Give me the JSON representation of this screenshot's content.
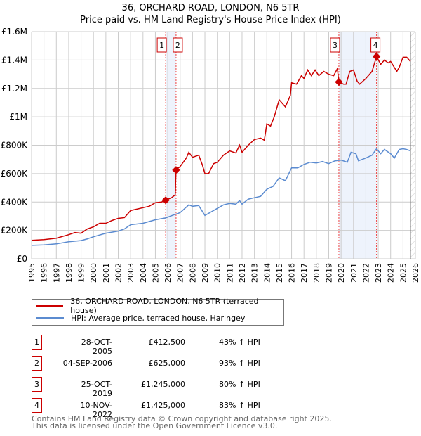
{
  "chart_data": {
    "type": "line",
    "title": "36, ORCHARD ROAD, LONDON, N6 5TR",
    "subtitle": "Price paid vs. HM Land Registry's House Price Index (HPI)",
    "xlim": [
      1995,
      2026
    ],
    "ylim": [
      0,
      1600000
    ],
    "x_ticks": [
      "1995",
      "1996",
      "1997",
      "1998",
      "1999",
      "2000",
      "2001",
      "2002",
      "2003",
      "2004",
      "2005",
      "2006",
      "2007",
      "2008",
      "2009",
      "2010",
      "2011",
      "2012",
      "2013",
      "2014",
      "2015",
      "2016",
      "2017",
      "2018",
      "2019",
      "2020",
      "2021",
      "2022",
      "2023",
      "2024",
      "2025",
      "2026"
    ],
    "y_ticks": [
      {
        "v": 0,
        "label": "£0"
      },
      {
        "v": 200000,
        "label": "£200K"
      },
      {
        "v": 400000,
        "label": "£400K"
      },
      {
        "v": 600000,
        "label": "£600K"
      },
      {
        "v": 800000,
        "label": "£800K"
      },
      {
        "v": 1000000,
        "label": "£1M"
      },
      {
        "v": 1200000,
        "label": "£1.2M"
      },
      {
        "v": 1400000,
        "label": "£1.4M"
      },
      {
        "v": 1600000,
        "label": "£1.6M"
      }
    ],
    "grid": true,
    "series": [
      {
        "name": "36, ORCHARD ROAD, LONDON, N6 5TR (terraced house)",
        "color": "#cc0000",
        "x": [
          1995,
          1996,
          1997,
          1998,
          1998.5,
          1999,
          1999.5,
          2000,
          2000.5,
          2001,
          2001.5,
          2002,
          2002.5,
          2003,
          2003.5,
          2004,
          2004.5,
          2005,
          2005.5,
          2005.83,
          2006.3,
          2006.6,
          2006.67,
          2007,
          2007.5,
          2007.7,
          2008,
          2008.5,
          2008.8,
          2009,
          2009.3,
          2009.7,
          2010,
          2010.5,
          2011,
          2011.5,
          2011.8,
          2012,
          2012.5,
          2013,
          2013.5,
          2013.8,
          2014,
          2014.3,
          2014.6,
          2015,
          2015.5,
          2015.9,
          2016,
          2016.4,
          2016.8,
          2017,
          2017.3,
          2017.6,
          2017.9,
          2018.2,
          2018.6,
          2019,
          2019.4,
          2019.7,
          2019.82,
          2020.2,
          2020.4,
          2020.7,
          2021,
          2021.3,
          2021.5,
          2022,
          2022.5,
          2022.86,
          2023.2,
          2023.5,
          2023.8,
          2024,
          2024.5,
          2024.7,
          2025,
          2025.3,
          2025.6
        ],
        "y": [
          130000,
          135000,
          145000,
          170000,
          185000,
          180000,
          210000,
          225000,
          250000,
          250000,
          270000,
          285000,
          290000,
          340000,
          350000,
          360000,
          370000,
          395000,
          400000,
          412500,
          430000,
          450000,
          625000,
          650000,
          710000,
          750000,
          715000,
          730000,
          660000,
          600000,
          600000,
          670000,
          680000,
          730000,
          760000,
          745000,
          800000,
          750000,
          800000,
          840000,
          850000,
          835000,
          950000,
          935000,
          1000000,
          1120000,
          1070000,
          1150000,
          1240000,
          1230000,
          1290000,
          1270000,
          1330000,
          1290000,
          1330000,
          1290000,
          1320000,
          1300000,
          1290000,
          1340000,
          1245000,
          1230000,
          1230000,
          1320000,
          1330000,
          1250000,
          1230000,
          1270000,
          1320000,
          1425000,
          1370000,
          1400000,
          1380000,
          1390000,
          1320000,
          1350000,
          1420000,
          1420000,
          1390000
        ]
      },
      {
        "name": "HPI: Average price, terraced house, Haringey",
        "color": "#5b8bd0",
        "x": [
          1995,
          1996,
          1997,
          1998,
          1999,
          1999.5,
          2000,
          2001,
          2002,
          2002.5,
          2003,
          2004,
          2005,
          2005.83,
          2006.5,
          2007,
          2007.7,
          2008,
          2008.5,
          2009,
          2009.5,
          2010,
          2010.5,
          2011,
          2011.5,
          2011.8,
          2012,
          2012.5,
          2013,
          2013.5,
          2014,
          2014.5,
          2015,
          2015.5,
          2016,
          2016.5,
          2017,
          2017.5,
          2018,
          2018.5,
          2019,
          2019.5,
          2020,
          2020.5,
          2020.8,
          2021.2,
          2021.4,
          2022,
          2022.5,
          2022.86,
          2023.2,
          2023.5,
          2024,
          2024.3,
          2024.7,
          2025,
          2025.3,
          2025.6
        ],
        "y": [
          95000,
          98000,
          105000,
          120000,
          128000,
          140000,
          155000,
          180000,
          195000,
          210000,
          240000,
          250000,
          275000,
          288000,
          310000,
          325000,
          380000,
          370000,
          375000,
          305000,
          330000,
          355000,
          380000,
          390000,
          385000,
          410000,
          385000,
          420000,
          430000,
          440000,
          490000,
          510000,
          570000,
          550000,
          640000,
          640000,
          665000,
          680000,
          675000,
          685000,
          670000,
          690000,
          695000,
          680000,
          750000,
          740000,
          690000,
          710000,
          730000,
          775000,
          740000,
          770000,
          740000,
          710000,
          770000,
          775000,
          770000,
          760000
        ]
      }
    ],
    "sales": [
      {
        "n": "1",
        "x": 2005.83,
        "y": 412500,
        "date": "28-OCT-2005",
        "price": "£412,500",
        "hpi": "43% ↑ HPI"
      },
      {
        "n": "2",
        "x": 2006.67,
        "y": 625000,
        "date": "04-SEP-2006",
        "price": "£625,000",
        "hpi": "93% ↑ HPI"
      },
      {
        "n": "3",
        "x": 2019.82,
        "y": 1245000,
        "date": "25-OCT-2019",
        "price": "£1,245,000",
        "hpi": "80% ↑ HPI"
      },
      {
        "n": "4",
        "x": 2022.86,
        "y": 1425000,
        "date": "10-NOV-2022",
        "price": "£1,425,000",
        "hpi": "83% ↑ HPI"
      }
    ],
    "shaded_spans": [
      [
        2005.83,
        2006.67
      ],
      [
        2019.82,
        2022.86
      ]
    ],
    "forecast_from": 2025.6
  },
  "footer": [
    "Contains HM Land Registry data © Crown copyright and database right 2025.",
    "This data is licensed under the Open Government Licence v3.0."
  ]
}
